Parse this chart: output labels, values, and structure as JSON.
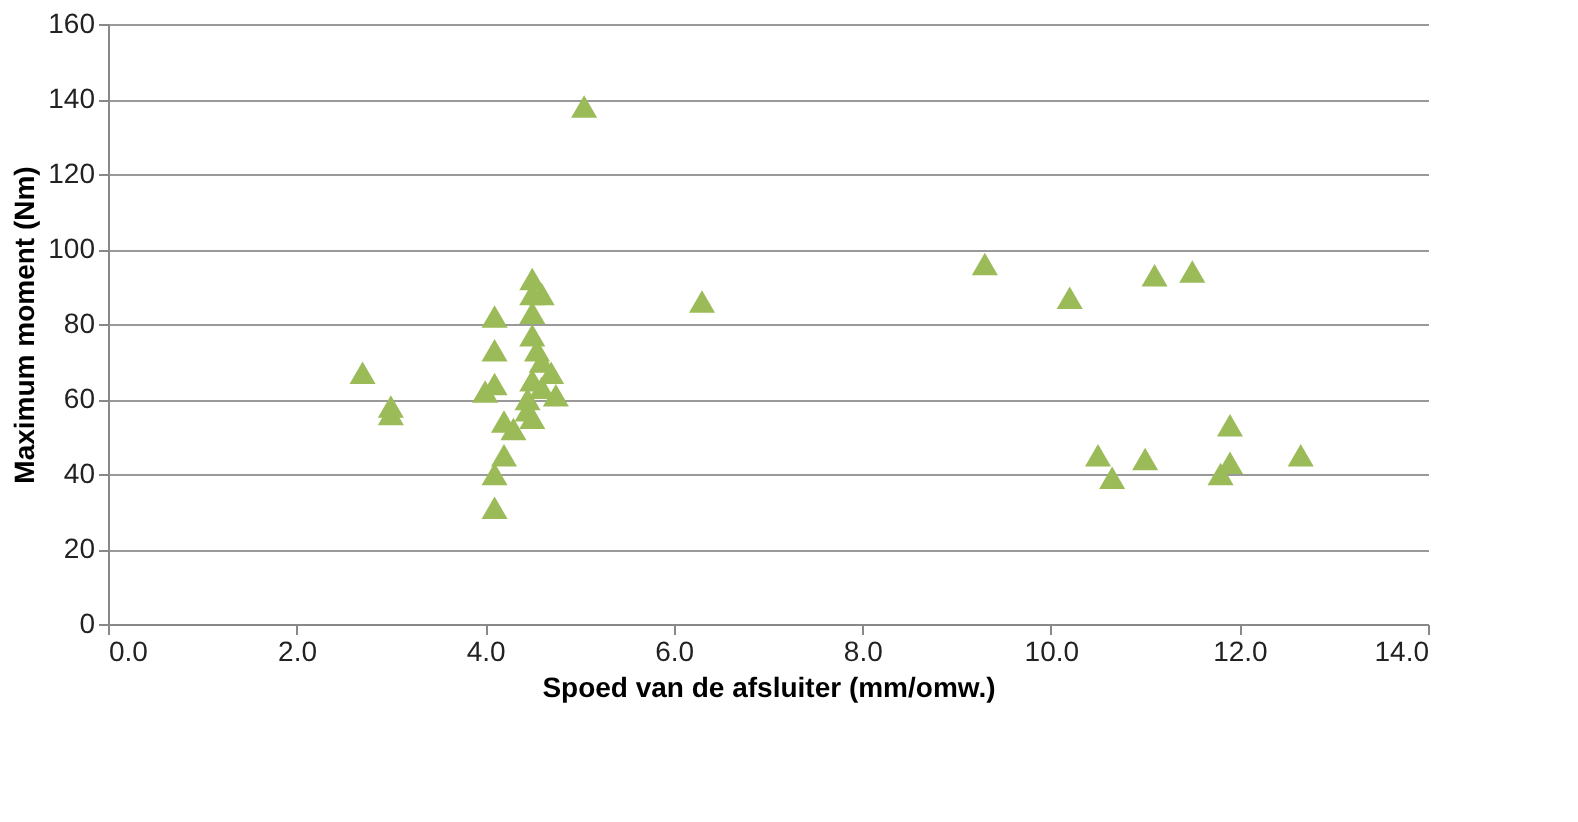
{
  "chart_data": {
    "type": "scatter",
    "xlabel": "Spoed van de afsluiter (mm/omw.)",
    "ylabel": "Maximum moment (Nm)",
    "xlim": [
      0,
      14
    ],
    "xticks": [
      {
        "value": 0,
        "label": "0.0"
      },
      {
        "value": 2,
        "label": "2.0"
      },
      {
        "value": 4,
        "label": "4.0"
      },
      {
        "value": 6,
        "label": "6.0"
      },
      {
        "value": 8,
        "label": "8.0"
      },
      {
        "value": 10,
        "label": "10.0"
      },
      {
        "value": 12,
        "label": "12.0"
      },
      {
        "value": 14,
        "label": "14.0"
      }
    ],
    "ylim": [
      0,
      160
    ],
    "yticks": [
      0,
      20,
      40,
      60,
      80,
      100,
      120,
      140,
      160
    ],
    "grid": "y",
    "legend": false,
    "marker": "triangle",
    "series": [
      {
        "color": "#9bbb59",
        "x": [
          2.7,
          3.0,
          3.0,
          4.1,
          4.1,
          4.0,
          4.1,
          4.2,
          4.3,
          4.2,
          4.1,
          4.1,
          4.5,
          4.5,
          4.6,
          4.5,
          4.5,
          4.55,
          4.6,
          4.7,
          4.5,
          4.45,
          4.45,
          4.5,
          4.75,
          4.6,
          5.05,
          6.3,
          9.3,
          10.2,
          11.1,
          11.5,
          10.5,
          10.65,
          11.0,
          11.8,
          11.9,
          11.9,
          12.65
        ],
        "values": [
          67,
          58,
          56,
          82,
          73,
          62,
          64,
          54,
          52,
          45,
          40,
          31,
          92,
          88,
          88,
          83,
          77,
          73,
          70,
          67,
          65,
          60,
          57,
          55,
          61,
          63,
          138,
          86,
          96,
          87,
          93,
          94,
          45,
          39,
          44,
          40,
          53,
          43,
          45
        ]
      }
    ]
  }
}
